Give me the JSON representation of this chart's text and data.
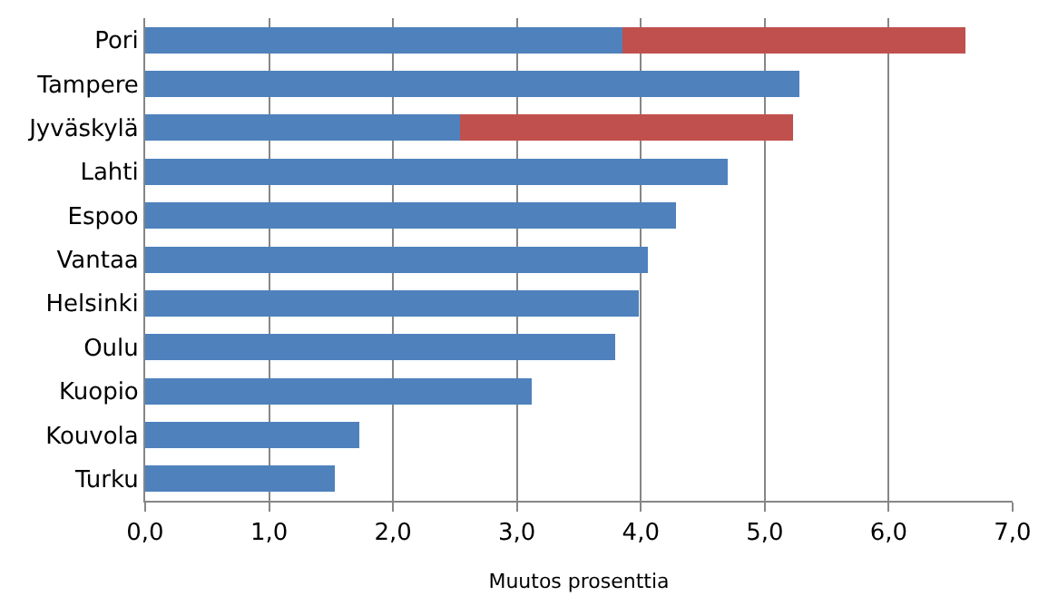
{
  "chart_data": {
    "type": "bar",
    "orientation": "horizontal",
    "stacked": true,
    "categories": [
      "Pori",
      "Tampere",
      "Jyväskylä",
      "Lahti",
      "Espoo",
      "Vantaa",
      "Helsinki",
      "Oulu",
      "Kuopio",
      "Kouvola",
      "Turku"
    ],
    "series": [
      {
        "color": "#4f81bd",
        "values": [
          3.85,
          5.28,
          2.54,
          4.7,
          4.28,
          4.06,
          3.98,
          3.79,
          3.12,
          1.73,
          1.53
        ]
      },
      {
        "color": "#c0504d",
        "values": [
          2.77,
          null,
          2.69,
          null,
          null,
          null,
          null,
          null,
          null,
          null,
          null
        ]
      }
    ],
    "xlabel": "Muutos prosenttia",
    "xlim": [
      0,
      7
    ],
    "xticks": [
      {
        "value": 0,
        "label": "0,0"
      },
      {
        "value": 1,
        "label": "1,0"
      },
      {
        "value": 2,
        "label": "2,0"
      },
      {
        "value": 3,
        "label": "3,0"
      },
      {
        "value": 4,
        "label": "4,0"
      },
      {
        "value": 5,
        "label": "5,0"
      },
      {
        "value": 6,
        "label": "6,0"
      },
      {
        "value": 7,
        "label": "7,0"
      }
    ],
    "grid": "x"
  }
}
